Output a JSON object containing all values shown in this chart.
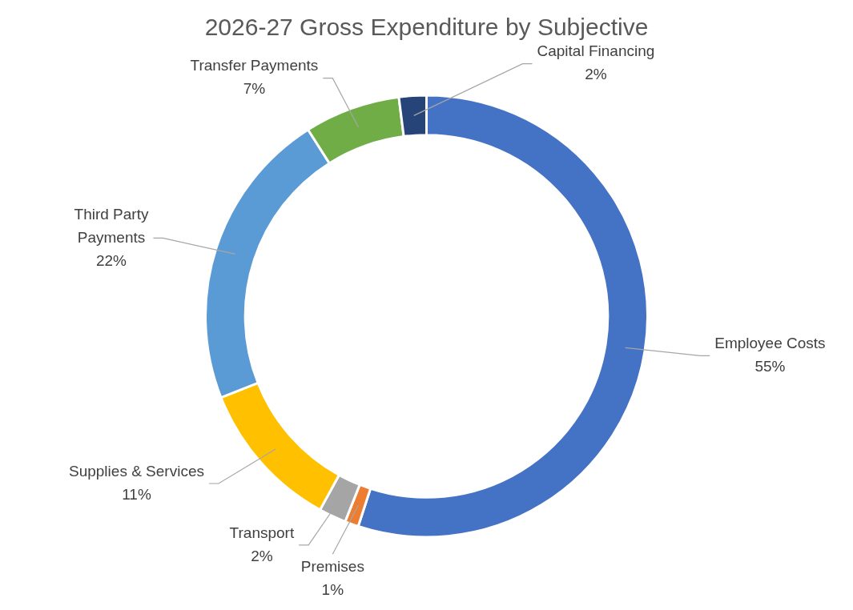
{
  "chart_data": {
    "type": "donut",
    "title": "2026-27 Gross Expenditure by Subjective",
    "categories": [
      "Employee Costs",
      "Premises",
      "Transport",
      "Supplies & Services",
      "Third Party Payments",
      "Transfer Payments",
      "Capital Financing"
    ],
    "values": [
      55,
      1,
      2,
      11,
      22,
      7,
      2
    ],
    "colors": [
      "#4472c4",
      "#ed7d31",
      "#a5a5a5",
      "#ffc000",
      "#5b9bd5",
      "#70ad47",
      "#264478"
    ],
    "value_labels": [
      "55%",
      "1%",
      "2%",
      "11%",
      "22%",
      "7%",
      "2%"
    ],
    "legend": false
  }
}
